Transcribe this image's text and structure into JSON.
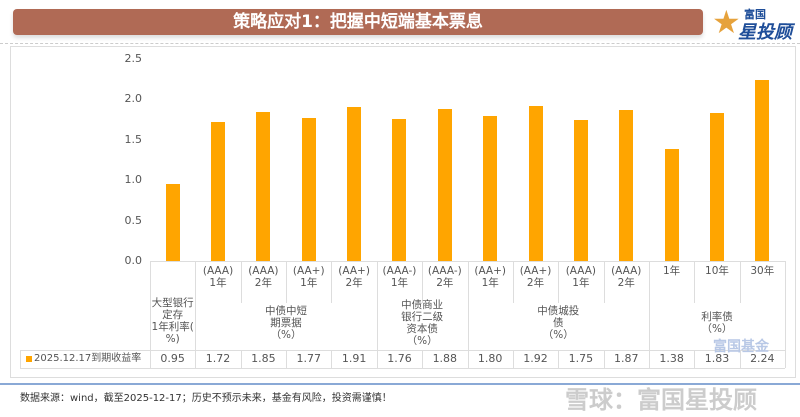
{
  "header": {
    "title": "策略应对1：把握中短端基本票息",
    "logo_top": "富国",
    "logo_bottom": "星投顾"
  },
  "chart_data": {
    "type": "bar",
    "ylim": [
      0,
      2.5
    ],
    "yticks": [
      "0.0",
      "0.5",
      "1.0",
      "1.5",
      "2.0",
      "2.5"
    ],
    "categories": [
      {
        "sub": "",
        "group": "大型银行定存1年利率(%)"
      },
      {
        "sub": "(AAA)\n1年",
        "group": "中债中短期票据(%)"
      },
      {
        "sub": "(AAA)\n2年",
        "group": "中债中短期票据(%)"
      },
      {
        "sub": "(AA+)\n1年",
        "group": "中债中短期票据(%)"
      },
      {
        "sub": "(AA+)\n2年",
        "group": "中债中短期票据(%)"
      },
      {
        "sub": "(AAA-)\n1年",
        "group": "中债商业银行二级资本债(%)"
      },
      {
        "sub": "(AAA-)\n2年",
        "group": "中债商业银行二级资本债(%)"
      },
      {
        "sub": "(AA+)\n1年",
        "group": "中债城投债(%)"
      },
      {
        "sub": "(AA+)\n2年",
        "group": "中债城投债(%)"
      },
      {
        "sub": "(AAA)\n1年",
        "group": "中债城投债(%)"
      },
      {
        "sub": "(AAA)\n2年",
        "group": "中债城投债(%)"
      },
      {
        "sub": "1年",
        "group": "利率债(%)"
      },
      {
        "sub": "10年",
        "group": "利率债(%)"
      },
      {
        "sub": "30年",
        "group": "利率债(%)"
      }
    ],
    "groups": [
      {
        "label": "大型银行\n定存\n1年利率(\n%)",
        "span": [
          0,
          0
        ]
      },
      {
        "label": "中债中短\n期票据\n（%）",
        "span": [
          1,
          4
        ]
      },
      {
        "label": "中债商业\n银行二级\n资本债\n（%）",
        "span": [
          5,
          6
        ]
      },
      {
        "label": "中债城投\n债\n（%）",
        "span": [
          7,
          10
        ]
      },
      {
        "label": "利率债\n（%）",
        "span": [
          11,
          13
        ]
      }
    ],
    "series": [
      {
        "name": "2025.12.17到期收益率",
        "values": [
          0.95,
          1.72,
          1.85,
          1.77,
          1.91,
          1.76,
          1.88,
          1.8,
          1.92,
          1.75,
          1.87,
          1.38,
          1.83,
          2.24
        ]
      }
    ],
    "value_labels": [
      "0.95",
      "1.72",
      "1.85",
      "1.77",
      "1.91",
      "1.76",
      "1.88",
      "1.80",
      "1.92",
      "1.75",
      "1.87",
      "1.38",
      "1.83",
      "2.24"
    ],
    "bar_color": "#ffa500",
    "legend": "bottom-left (data table)"
  },
  "footer": {
    "source": "数据来源：wind，截至2025-12-17；历史不预示未来，基金有风险，投资需谨慎！"
  },
  "watermark": {
    "main": "雪球：富国星投顾",
    "corner": "富国基金"
  }
}
